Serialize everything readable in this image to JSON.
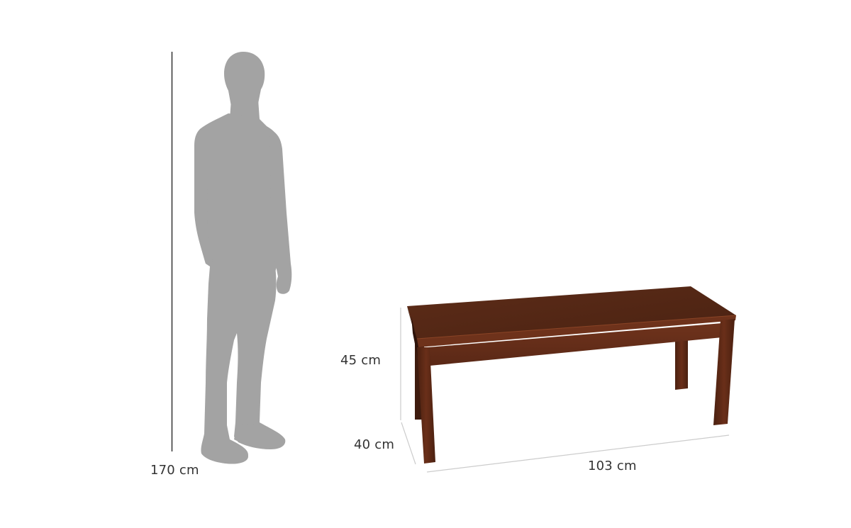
{
  "figure": {
    "person_height_label": "170 cm",
    "bench_height_label": "45 cm",
    "bench_depth_label": "40 cm",
    "bench_width_label": "103 cm"
  },
  "colors": {
    "silhouette": "#a3a3a3",
    "dimension_line": "#333333",
    "guide_line": "#cccccc",
    "wood_top": "#5a2a17",
    "wood_edge": "#6e321b",
    "wood_dark": "#3e1b0e",
    "text": "#333333"
  }
}
